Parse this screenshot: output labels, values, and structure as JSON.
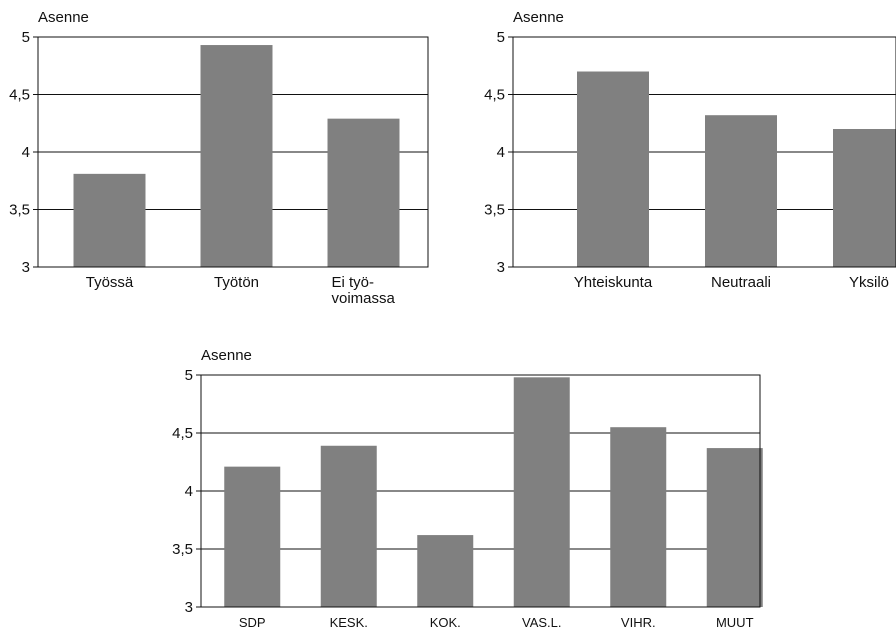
{
  "chart_data": [
    {
      "type": "bar",
      "ylabel": "Asenne",
      "ylim": [
        3,
        5
      ],
      "yticks": [
        "3",
        "3,5",
        "4",
        "4,5",
        "5"
      ],
      "grid": true,
      "categories": [
        "Työssä",
        "Työtön",
        "Ei työ-\nvoimassa"
      ],
      "values": [
        3.81,
        4.93,
        4.29
      ],
      "bar_color": "#808080"
    },
    {
      "type": "bar",
      "ylabel": "Asenne",
      "ylim": [
        3,
        5
      ],
      "yticks": [
        "3",
        "3,5",
        "4",
        "4,5",
        "5"
      ],
      "grid": true,
      "categories": [
        "Yhteiskunta",
        "Neutraali",
        "Yksilö"
      ],
      "values": [
        4.7,
        4.32,
        4.2
      ],
      "bar_color": "#808080"
    },
    {
      "type": "bar",
      "ylabel": "Asenne",
      "ylim": [
        3,
        5
      ],
      "yticks": [
        "3",
        "3,5",
        "4",
        "4,5",
        "5"
      ],
      "grid": true,
      "categories": [
        "SDP",
        "KESK.",
        "KOK.",
        "VAS.L.",
        "VIHR.",
        "MUUT"
      ],
      "values": [
        4.21,
        4.39,
        3.62,
        4.98,
        4.55,
        4.37
      ],
      "bar_color": "#808080"
    }
  ]
}
